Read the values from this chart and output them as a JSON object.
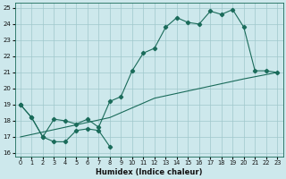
{
  "xlabel": "Humidex (Indice chaleur)",
  "background_color": "#cde8ec",
  "grid_color": "#a0c8cc",
  "line_color": "#1a6b5a",
  "xlim": [
    -0.5,
    23.5
  ],
  "ylim": [
    15.8,
    25.3
  ],
  "yticks": [
    16,
    17,
    18,
    19,
    20,
    21,
    22,
    23,
    24,
    25
  ],
  "xticks": [
    0,
    1,
    2,
    3,
    4,
    5,
    6,
    7,
    8,
    9,
    10,
    11,
    12,
    13,
    14,
    15,
    16,
    17,
    18,
    19,
    20,
    21,
    22,
    23
  ],
  "line1_x": [
    0,
    1,
    2,
    3,
    4,
    5,
    6,
    7,
    8,
    9,
    10,
    11,
    12,
    13,
    14,
    15,
    16,
    17,
    18,
    19,
    20,
    21,
    22,
    23
  ],
  "line1_y": [
    19.0,
    18.2,
    17.0,
    18.1,
    18.0,
    17.8,
    18.1,
    17.6,
    19.2,
    19.5,
    21.1,
    22.2,
    22.5,
    23.8,
    24.4,
    24.1,
    24.0,
    24.8,
    24.6,
    24.9,
    23.8,
    21.1,
    21.1,
    21.0
  ],
  "line2_x": [
    0,
    1,
    2,
    3,
    4,
    5,
    6,
    7,
    8
  ],
  "line2_y": [
    19.0,
    18.2,
    17.0,
    16.7,
    16.7,
    17.4,
    17.5,
    17.4,
    16.4
  ],
  "line3_x": [
    0,
    4,
    8,
    12,
    16,
    20,
    23
  ],
  "line3_y": [
    17.0,
    17.6,
    18.2,
    19.4,
    20.0,
    20.6,
    21.0
  ]
}
